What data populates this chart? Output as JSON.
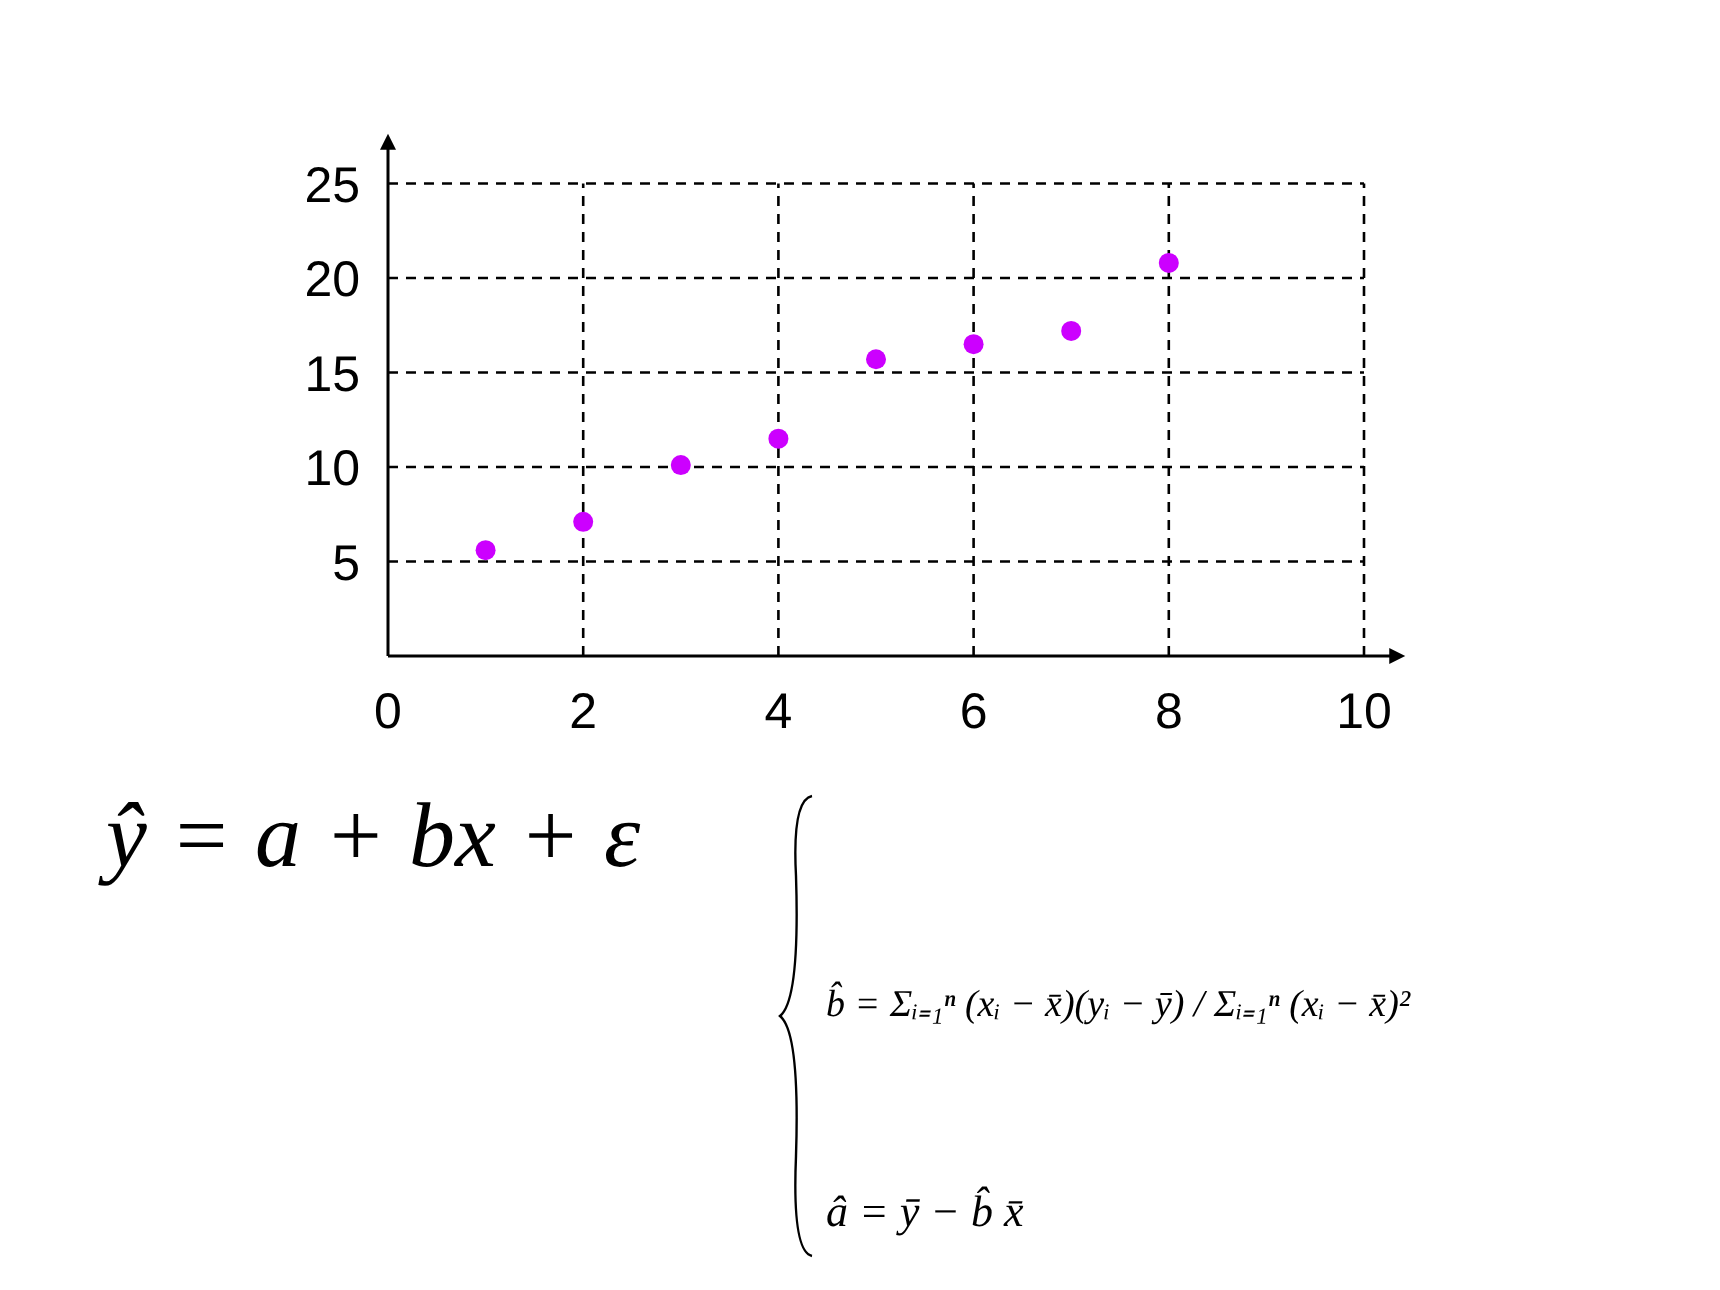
{
  "chart_data": {
    "type": "scatter",
    "x": [
      1,
      2,
      3,
      4,
      5,
      6,
      7,
      8
    ],
    "series": [
      {
        "color": "#cc00ff",
        "values": [
          5.6,
          7.1,
          10.1,
          11.5,
          15.7,
          16.5,
          17.2,
          20.8
        ]
      }
    ],
    "xlim": [
      0,
      10.3
    ],
    "ylim": [
      0,
      27
    ],
    "xticks": [
      0,
      2,
      4,
      6,
      8,
      10
    ],
    "yticks": [
      5,
      10,
      15,
      20,
      25
    ],
    "grid": true,
    "marker": "circle",
    "annotations": [
      "ŷ = a + bx + ε",
      "b̂ = Σᵢ₌₁ⁿ (xᵢ − x̄)(yᵢ − ȳ) / Σᵢ₌₁ⁿ (xᵢ − x̄)²",
      "â = ȳ − b̂ x̄"
    ]
  }
}
